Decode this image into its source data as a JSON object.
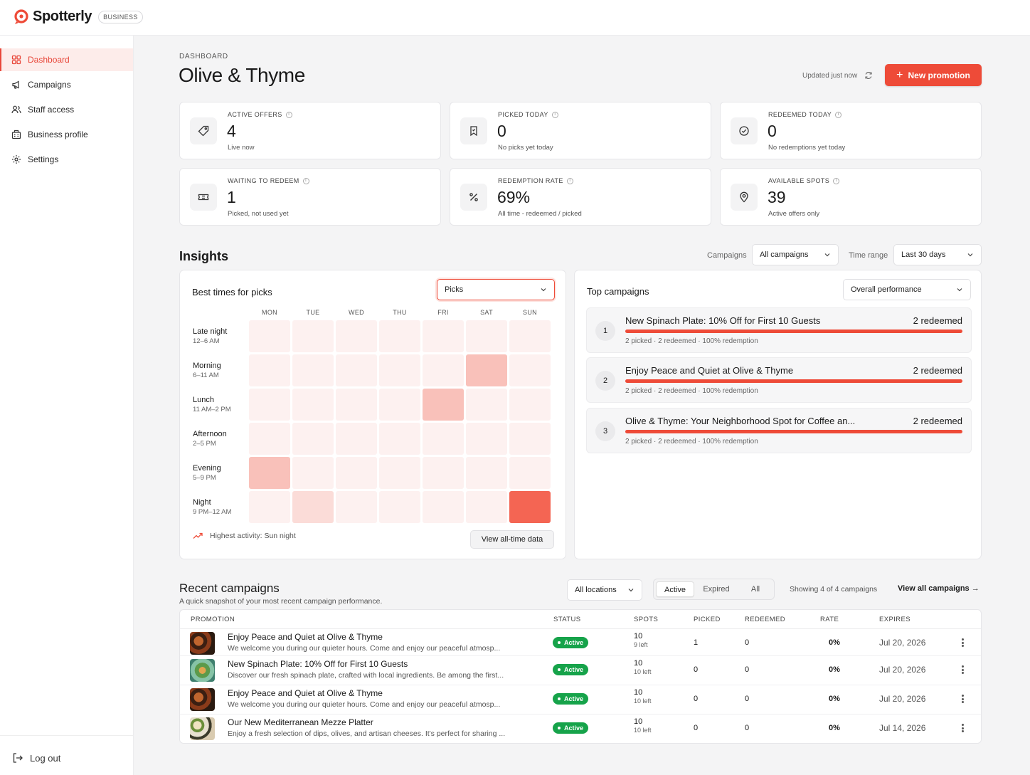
{
  "brand": {
    "name": "Spotterly",
    "badge": "BUSINESS"
  },
  "sidebar": {
    "items": [
      {
        "label": "Dashboard",
        "icon": "grid-icon",
        "active": true
      },
      {
        "label": "Campaigns",
        "icon": "megaphone-icon"
      },
      {
        "label": "Staff access",
        "icon": "users-icon"
      },
      {
        "label": "Business profile",
        "icon": "building-icon"
      },
      {
        "label": "Settings",
        "icon": "gear-icon"
      }
    ],
    "logout": "Log out"
  },
  "header": {
    "breadcrumb": "DASHBOARD",
    "title": "Olive & Thyme",
    "updated": "Updated just now",
    "new_promotion": "New promotion"
  },
  "stats": [
    {
      "label": "ACTIVE OFFERS",
      "value": "4",
      "sub": "Live now",
      "icon": "tag-icon"
    },
    {
      "label": "PICKED TODAY",
      "value": "0",
      "sub": "No picks yet today",
      "icon": "bookmark-icon"
    },
    {
      "label": "REDEEMED TODAY",
      "value": "0",
      "sub": "No redemptions yet today",
      "icon": "check-circle-icon"
    },
    {
      "label": "WAITING TO REDEEM",
      "value": "1",
      "sub": "Picked, not used yet",
      "icon": "ticket-icon"
    },
    {
      "label": "REDEMPTION RATE",
      "value": "69%",
      "sub": "All time - redeemed / picked",
      "icon": "percent-icon"
    },
    {
      "label": "AVAILABLE SPOTS",
      "value": "39",
      "sub": "Active offers only",
      "icon": "map-pin-icon"
    }
  ],
  "insights": {
    "title": "Insights",
    "campaigns_label": "Campaigns",
    "campaigns_value": "All campaigns",
    "time_range_label": "Time range",
    "time_range_value": "Last 30 days",
    "heatmap": {
      "title": "Best times for picks",
      "metric": "Picks",
      "days": [
        "MON",
        "TUE",
        "WED",
        "THU",
        "FRI",
        "SAT",
        "SUN"
      ],
      "rows": [
        {
          "name": "Late night",
          "range": "12–6 AM"
        },
        {
          "name": "Morning",
          "range": "6–11 AM"
        },
        {
          "name": "Lunch",
          "range": "11 AM–2 PM"
        },
        {
          "name": "Afternoon",
          "range": "2–5 PM"
        },
        {
          "name": "Evening",
          "range": "5–9 PM"
        },
        {
          "name": "Night",
          "range": "9 PM–12 AM"
        }
      ],
      "values": [
        [
          0,
          0,
          0,
          0,
          0,
          0,
          0
        ],
        [
          0,
          0,
          0,
          0,
          0,
          1,
          0
        ],
        [
          0,
          0,
          0,
          0,
          1,
          0,
          0
        ],
        [
          0,
          0,
          0,
          0,
          0,
          0,
          0
        ],
        [
          1,
          0,
          0,
          0,
          0,
          0,
          0
        ],
        [
          0,
          0.5,
          0,
          0,
          0,
          0,
          3
        ]
      ],
      "highlight": "Highest activity: Sun night",
      "view_all": "View all-time data"
    },
    "top_campaigns": {
      "title": "Top campaigns",
      "filter": "Overall performance",
      "items": [
        {
          "rank": "1",
          "name": "New Spinach Plate: 10% Off for First 10 Guests",
          "redeemed": "2 redeemed",
          "meta": "2 picked · 2 redeemed · 100% redemption"
        },
        {
          "rank": "2",
          "name": "Enjoy Peace and Quiet at Olive & Thyme",
          "redeemed": "2 redeemed",
          "meta": "2 picked · 2 redeemed · 100% redemption"
        },
        {
          "rank": "3",
          "name": "Olive & Thyme: Your Neighborhood Spot for Coffee an...",
          "redeemed": "2 redeemed",
          "meta": "2 picked · 2 redeemed · 100% redemption"
        }
      ]
    }
  },
  "recent": {
    "title": "Recent campaigns",
    "subtitle": "A quick snapshot of your most recent campaign performance.",
    "locations": "All locations",
    "tabs": [
      "Active",
      "Expired",
      "All"
    ],
    "showing": "Showing 4 of 4 campaigns",
    "view_all": "View all campaigns →",
    "columns": [
      "PROMOTION",
      "STATUS",
      "SPOTS",
      "PICKED",
      "REDEEMED",
      "RATE",
      "EXPIRES"
    ],
    "rows": [
      {
        "name": "Enjoy Peace and Quiet at Olive & Thyme",
        "desc": "We welcome you during our quieter hours. Come and enjoy our peaceful atmosp...",
        "status": "Active",
        "spots": "10",
        "spots_left": "9 left",
        "picked": "1",
        "redeemed": "0",
        "rate": "0%",
        "expires": "Jul 20, 2026",
        "thumb": "food-dark"
      },
      {
        "name": "New Spinach Plate: 10% Off for First 10 Guests",
        "desc": "Discover our fresh spinach plate, crafted with local ingredients. Be among the first...",
        "status": "Active",
        "spots": "10",
        "spots_left": "10 left",
        "picked": "0",
        "redeemed": "0",
        "rate": "0%",
        "expires": "Jul 20, 2026",
        "thumb": "food-green"
      },
      {
        "name": "Enjoy Peace and Quiet at Olive & Thyme",
        "desc": "We welcome you during our quieter hours. Come and enjoy our peaceful atmosp...",
        "status": "Active",
        "spots": "10",
        "spots_left": "10 left",
        "picked": "0",
        "redeemed": "0",
        "rate": "0%",
        "expires": "Jul 20, 2026",
        "thumb": "food-dark"
      },
      {
        "name": "Our New Mediterranean Mezze Platter",
        "desc": "Enjoy a fresh selection of dips, olives, and artisan cheeses. It's perfect for sharing ...",
        "status": "Active",
        "spots": "10",
        "spots_left": "10 left",
        "picked": "0",
        "redeemed": "0",
        "rate": "0%",
        "expires": "Jul 14, 2026",
        "thumb": "food-mezze"
      }
    ]
  },
  "colors": {
    "accent": "#ee4b38",
    "active_badge": "#16a34a"
  }
}
